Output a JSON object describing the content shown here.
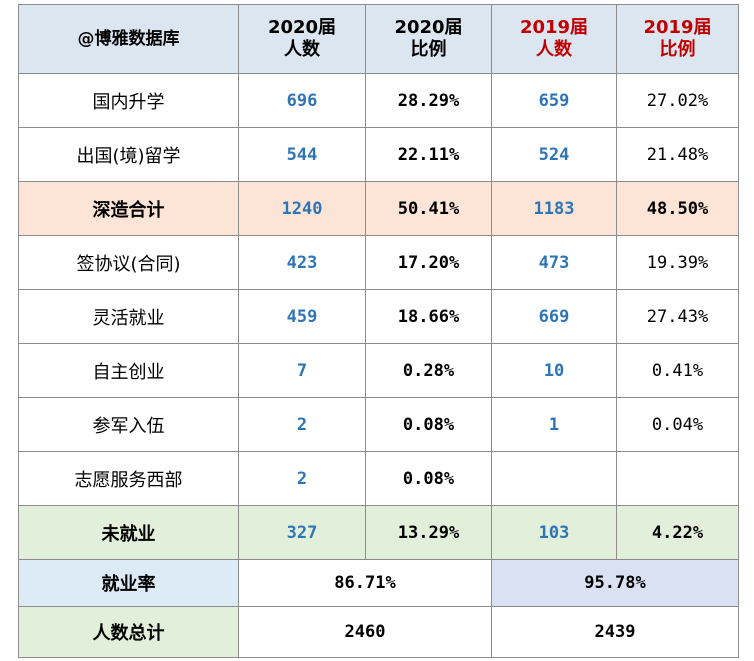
{
  "header": [
    [
      "@博雅数据库"
    ],
    [
      "2020届",
      "人数"
    ],
    [
      "2020届",
      "比例"
    ],
    [
      "2019届",
      "人数"
    ],
    [
      "2019届",
      "比例"
    ]
  ],
  "rows": [
    [
      "国内升学",
      "696",
      "28.29%",
      "659",
      "27.02%"
    ],
    [
      "出国(境)留学",
      "544",
      "22.11%",
      "524",
      "21.48%"
    ],
    [
      "深造合计",
      "1240",
      "50.41%",
      "1183",
      "48.50%"
    ],
    [
      "签协议(合同)",
      "423",
      "17.20%",
      "473",
      "19.39%"
    ],
    [
      "灵活就业",
      "459",
      "18.66%",
      "669",
      "27.43%"
    ],
    [
      "自主创业",
      "7",
      "0.28%",
      "10",
      "0.41%"
    ],
    [
      "参军入伍",
      "2",
      "0.08%",
      "1",
      "0.04%"
    ],
    [
      "志愿服务西部",
      "2",
      "0.08%",
      null,
      null
    ],
    [
      "未就业",
      "327",
      "13.29%",
      "103",
      "4.22%"
    ],
    [
      "就业率",
      "86.71%",
      "95.78%"
    ],
    [
      "人数总计",
      "2460",
      "2439"
    ]
  ]
}
